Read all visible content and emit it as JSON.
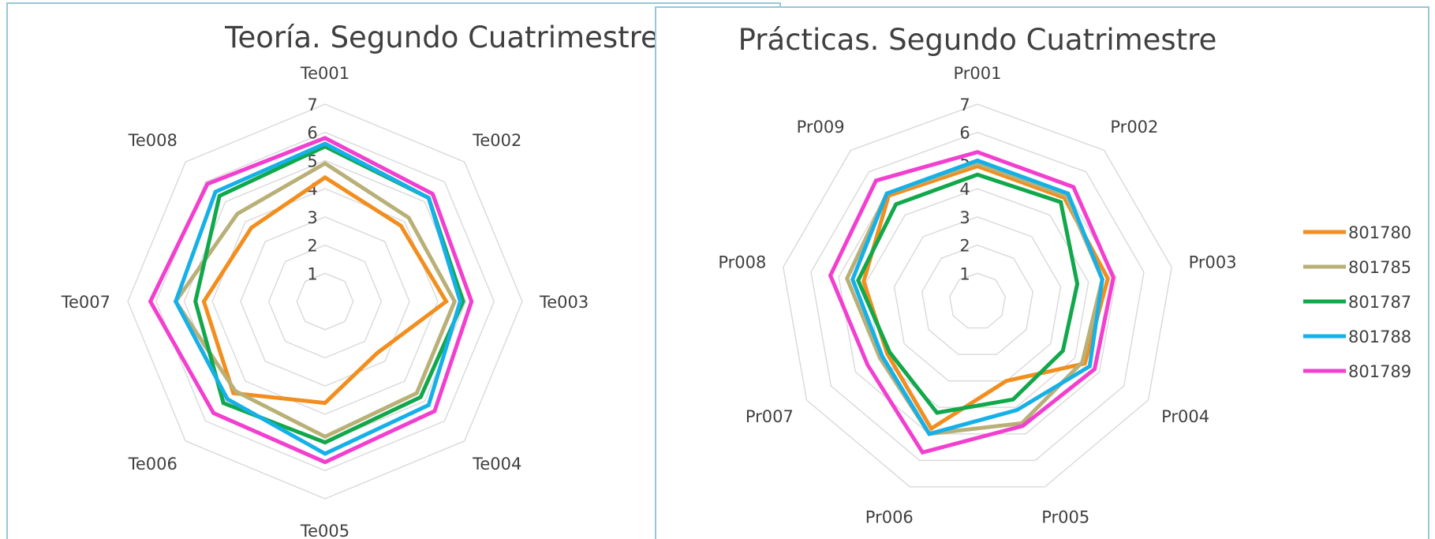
{
  "colors": {
    "801780": "#f28e1e",
    "801785": "#b9b078",
    "801787": "#11a84c",
    "801788": "#16b0e8",
    "801789": "#f23fcf",
    "grid": "#d9d9d9",
    "frame": "#9ac6d6",
    "text": "#404040"
  },
  "legend": {
    "placement": "right",
    "entries": [
      "801780",
      "801785",
      "801787",
      "801788",
      "801789"
    ]
  },
  "chart_data": [
    {
      "type": "radar",
      "title": "Teoría. Segundo Cuatrimestre",
      "categories": [
        "Te001",
        "Te002",
        "Te003",
        "Te004",
        "Te005",
        "Te006",
        "Te007",
        "Te008"
      ],
      "ticks": [
        "1",
        "2",
        "3",
        "4",
        "5",
        "6",
        "7"
      ],
      "rlim": [
        0,
        7
      ],
      "grid": true,
      "series": [
        {
          "name": "801780",
          "values": [
            4.4,
            3.8,
            4.3,
            2.6,
            3.6,
            4.6,
            4.3,
            3.7
          ]
        },
        {
          "name": "801785",
          "values": [
            4.9,
            4.2,
            4.6,
            4.6,
            4.8,
            4.5,
            5.3,
            4.4
          ]
        },
        {
          "name": "801787",
          "values": [
            5.5,
            5.2,
            4.9,
            4.8,
            5.0,
            5.1,
            4.6,
            5.3
          ]
        },
        {
          "name": "801788",
          "values": [
            5.6,
            5.2,
            4.8,
            5.2,
            5.4,
            4.9,
            5.3,
            5.5
          ]
        },
        {
          "name": "801789",
          "values": [
            5.8,
            5.4,
            5.2,
            5.5,
            5.7,
            5.6,
            6.2,
            5.9
          ]
        }
      ]
    },
    {
      "type": "radar",
      "title": "Prácticas. Segundo Cuatrimestre",
      "categories": [
        "Pr001",
        "Pr002",
        "Pr003",
        "Pr004",
        "Pr005",
        "Pr006",
        "Pr007",
        "Pr008",
        "Pr009"
      ],
      "ticks": [
        "1",
        "2",
        "3",
        "4",
        "5",
        "6",
        "7"
      ],
      "rlim": [
        0,
        7
      ],
      "grid": true,
      "series": [
        {
          "name": "801780",
          "values": [
            4.8,
            4.8,
            4.7,
            4.4,
            3.0,
            4.8,
            3.7,
            4.1,
            4.9
          ]
        },
        {
          "name": "801785",
          "values": [
            4.9,
            4.9,
            4.5,
            4.3,
            4.6,
            5.0,
            4.0,
            4.7,
            5.0
          ]
        },
        {
          "name": "801787",
          "values": [
            4.5,
            4.6,
            3.6,
            3.5,
            3.7,
            4.2,
            3.6,
            4.3,
            4.5
          ]
        },
        {
          "name": "801788",
          "values": [
            5.0,
            5.0,
            4.5,
            4.6,
            4.1,
            5.0,
            3.9,
            4.5,
            5.0
          ]
        },
        {
          "name": "801789",
          "values": [
            5.3,
            5.3,
            4.9,
            4.8,
            4.7,
            5.7,
            4.5,
            5.3,
            5.6
          ]
        }
      ]
    }
  ]
}
